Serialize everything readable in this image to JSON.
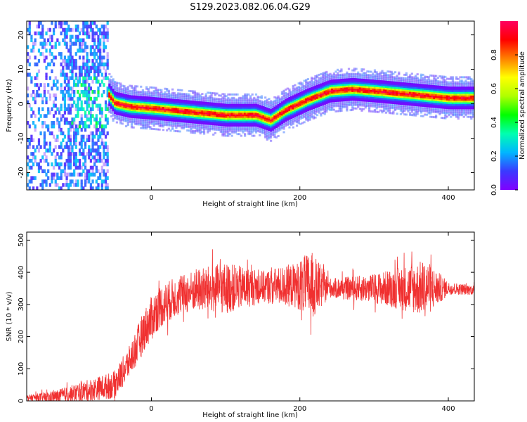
{
  "figure_title": "S129.2023.082.06.04.G29",
  "chart_data": [
    {
      "type": "heatmap",
      "xlabel": "Height of straight line (km)",
      "ylabel": "Frequency (Hz)",
      "xlim": [
        -168,
        435
      ],
      "ylim": [
        -25,
        24
      ],
      "x_ticks": [
        0,
        200,
        400
      ],
      "y_ticks": [
        -20,
        -10,
        0,
        10,
        20
      ],
      "grid": false,
      "colorbar": {
        "label": "Normalized spectral amplitude",
        "range": [
          0,
          1
        ],
        "ticks": [
          0.0,
          0.2,
          0.4,
          0.6,
          0.8
        ],
        "colormap": [
          "#8000ff",
          "#3a3aff",
          "#00b7ff",
          "#00ffb0",
          "#00ff00",
          "#b0ff00",
          "#ffff00",
          "#ff8000",
          "#ff0000",
          "#ff0060"
        ]
      },
      "ridge": {
        "x": [
          -60,
          -50,
          -30,
          0,
          50,
          100,
          140,
          160,
          180,
          210,
          240,
          270,
          300,
          350,
          400,
          435
        ],
        "y": [
          3,
          0,
          -1,
          -1.5,
          -2.5,
          -3.5,
          -3.5,
          -5,
          -2,
          1,
          3.5,
          4,
          3.5,
          2.5,
          1.5,
          1.5
        ]
      }
    },
    {
      "type": "line",
      "xlabel": "Height of straight line (km)",
      "ylabel": "SNR (10 * v/v)",
      "xlim": [
        -168,
        435
      ],
      "ylim": [
        0,
        525
      ],
      "x_ticks": [
        0,
        200,
        400
      ],
      "y_ticks": [
        0,
        100,
        200,
        300,
        400,
        500
      ],
      "grid": false,
      "line_color": "#f03030",
      "series": [
        {
          "trend": {
            "x": [
              -168,
              -130,
              -100,
              -70,
              -50,
              -30,
              -10,
              10,
              30,
              60,
              100,
              150,
              200,
              250,
              300,
              350,
              400,
              435
            ],
            "y": [
              10,
              12,
              25,
              40,
              50,
              120,
              220,
              290,
              320,
              345,
              350,
              355,
              360,
              350,
              350,
              350,
              350,
              345
            ]
          },
          "noise": {
            "x": [
              -168,
              -100,
              -60,
              -30,
              0,
              40,
              100,
              150,
              195,
              215,
              240,
              300,
              340,
              370,
              400,
              435
            ],
            "amp": [
              8,
              30,
              40,
              50,
              70,
              60,
              80,
              50,
              70,
              110,
              30,
              45,
              70,
              90,
              20,
              15
            ]
          }
        }
      ]
    }
  ]
}
